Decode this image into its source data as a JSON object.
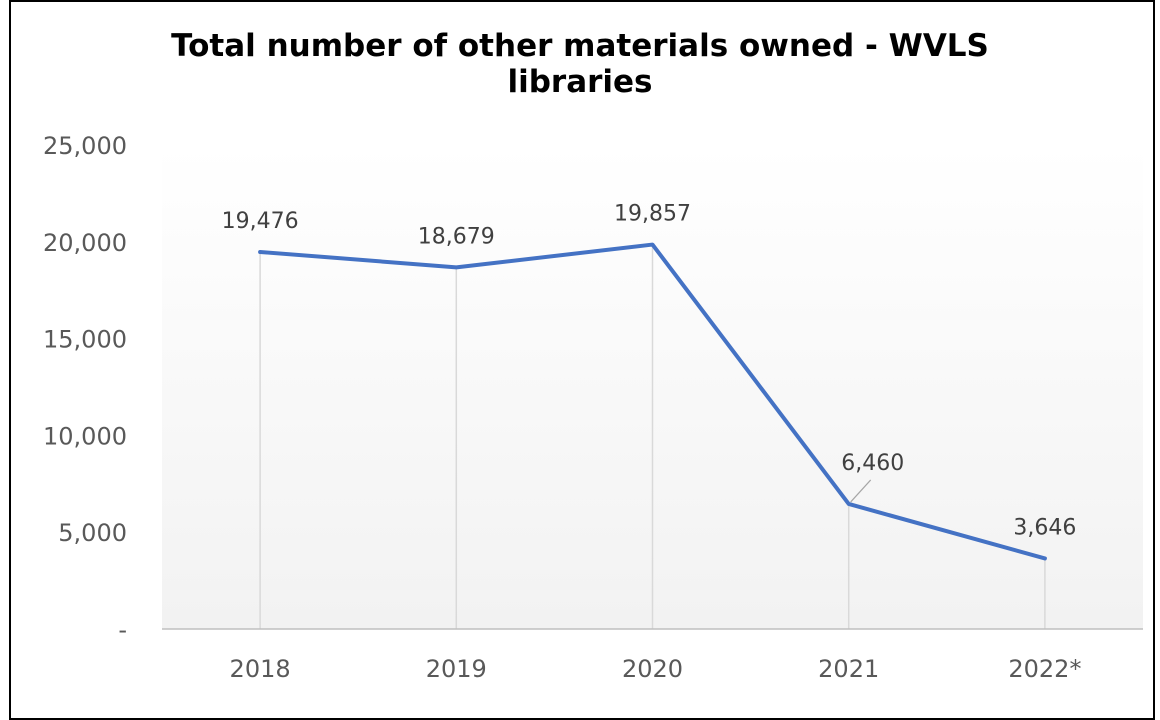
{
  "chart_data": {
    "type": "line",
    "title": [
      "Total number of other materials owned - WVLS",
      "libraries"
    ],
    "categories": [
      "2018",
      "2019",
      "2020",
      "2021",
      "2022*"
    ],
    "series": [
      {
        "values": [
          19476,
          18679,
          19857,
          6460,
          3646
        ]
      }
    ],
    "data_labels": [
      "19,476",
      "18,679",
      "19,857",
      "6,460",
      "3,646"
    ],
    "y_ticks": [
      {
        "value": 0,
        "label": "-"
      },
      {
        "value": 5000,
        "label": "5,000"
      },
      {
        "value": 10000,
        "label": "10,000"
      },
      {
        "value": 15000,
        "label": "15,000"
      },
      {
        "value": 20000,
        "label": "20,000"
      },
      {
        "value": 25000,
        "label": "25,000"
      }
    ],
    "ylim": [
      0,
      25000
    ],
    "xlabel": "",
    "ylabel": "",
    "grid": false,
    "drop_lines": true,
    "legend": "none",
    "colors": {
      "line": "#4472C4",
      "drop_line": "#D9D9D9",
      "axis": "#BFBFBF",
      "tick_text": "#595959",
      "label_text": "#404040",
      "gradient_top": "#FFFFFF",
      "gradient_bottom": "#F2F2F2"
    }
  }
}
